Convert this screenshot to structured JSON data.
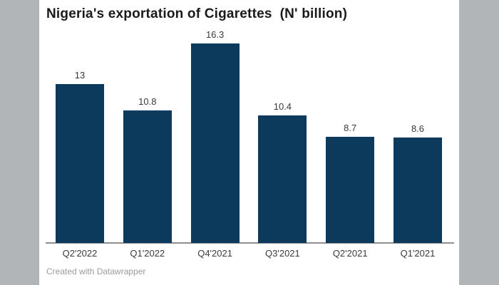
{
  "page": {
    "side_panel_color": "#b2b5b7",
    "panel_color": "#ffffff"
  },
  "chart": {
    "bar_color": "#0c3a5c",
    "axis_line_color": "#8f8f8f",
    "title_color": "#1a1a1a",
    "label_color": "#3a3a3a",
    "attribution_color": "#9b9b9b",
    "attribution": "Created with Datawrapper"
  },
  "chart_data": {
    "type": "bar",
    "title": "Nigeria's exportation of Cigarettes  (N' billion)",
    "categories": [
      "Q2'2022",
      "Q1'2022",
      "Q4'2021",
      "Q3'2021",
      "Q2'2021",
      "Q1'2021"
    ],
    "values": [
      13,
      10.8,
      16.3,
      10.4,
      8.7,
      8.6
    ],
    "value_labels": [
      "13",
      "10.8",
      "16.3",
      "10.4",
      "8.7",
      "8.6"
    ],
    "xlabel": "",
    "ylabel": "",
    "ylim": [
      0,
      16.3
    ],
    "grid": false,
    "legend": false,
    "data_labels_shown": true,
    "bar_orientation": "vertical"
  }
}
